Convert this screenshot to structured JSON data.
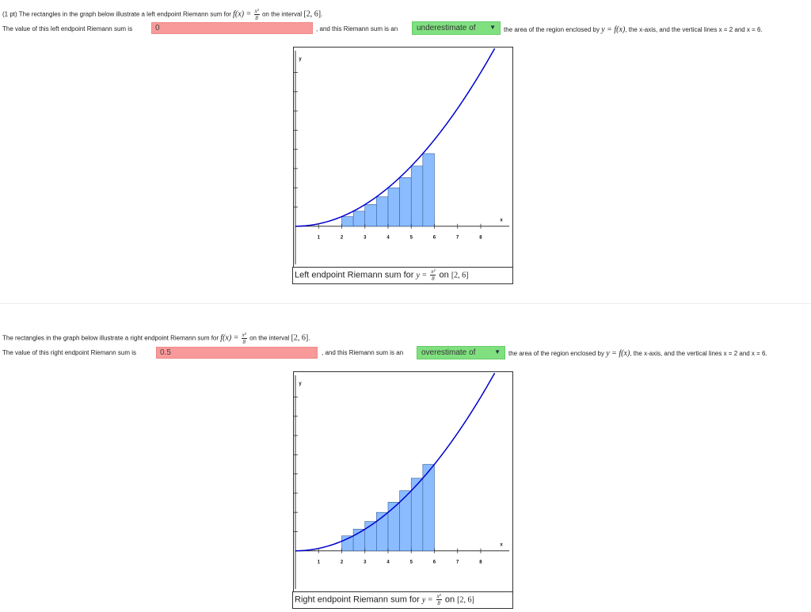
{
  "problem_a": {
    "points": "(1 pt)",
    "intro": "The rectangles in the graph below illustrate a left endpoint Riemann sum for",
    "func": "f(x) =",
    "frac_num": "x²",
    "frac_den": "8",
    "interval_label": "on the interval",
    "interval": "[2, 6]",
    "value_prefix": "The value of this left endpoint Riemann sum is",
    "value_input": "0",
    "middle_text": ", and this Riemann sum is an",
    "select_value": "underestimate of",
    "tail_text_1": "the area of the region enclosed by",
    "tail_math": "y = f(x)",
    "tail_text_2": ", the x-axis, and the vertical lines x = 2 and x = 6.",
    "caption_text": "Left endpoint Riemann sum for",
    "caption_math": "y =",
    "caption_on": "on",
    "caption_interval": "[2, 6]"
  },
  "problem_b": {
    "intro": "The rectangles in the graph below illustrate a right endpoint Riemann sum for",
    "func": "f(x) =",
    "frac_num": "x²",
    "frac_den": "8",
    "interval_label": "on the interval",
    "interval": "[2, 6]",
    "value_prefix": "The value of this right endpoint Riemann sum is",
    "value_input": "0.5",
    "middle_text": ", and this Riemann sum is an",
    "select_value": "overestimate of",
    "tail_text_1": "the area of the region enclosed by",
    "tail_math": "y = f(x)",
    "tail_text_2": ", the x-axis, and the vertical lines x = 2 and x = 6.",
    "caption_text": "Right endpoint Riemann sum for",
    "caption_math": "y =",
    "caption_on": "on",
    "caption_interval": "[2, 6]"
  },
  "chart_data": [
    {
      "type": "bar",
      "title": "",
      "xlabel": "x",
      "ylabel": "y",
      "xlim": [
        0,
        9.3
      ],
      "ylim": [
        -1,
        9.3
      ],
      "x_ticks": [
        1,
        2,
        3,
        4,
        5,
        6,
        7,
        8
      ],
      "y_ticks": [
        1,
        2,
        3,
        4,
        5,
        6,
        7,
        8
      ],
      "curve": "y = x^2/8",
      "curve_color": "#0000cc",
      "bar_color": "#8bbcff",
      "bar_width": 0.5,
      "bars_left_x": [
        2,
        2.5,
        3,
        3.5,
        4,
        4.5,
        5,
        5.5
      ],
      "values": [
        0.5,
        0.78,
        1.13,
        1.53,
        2.0,
        2.53,
        3.13,
        3.78
      ]
    },
    {
      "type": "bar",
      "title": "",
      "xlabel": "x",
      "ylabel": "y",
      "xlim": [
        0,
        9.3
      ],
      "ylim": [
        -1,
        9.3
      ],
      "x_ticks": [
        1,
        2,
        3,
        4,
        5,
        6,
        7,
        8
      ],
      "y_ticks": [
        1,
        2,
        3,
        4,
        5,
        6,
        7,
        8
      ],
      "curve": "y = x^2/8",
      "curve_color": "#0000cc",
      "bar_color": "#8bbcff",
      "bar_width": 0.5,
      "bars_left_x": [
        2,
        2.5,
        3,
        3.5,
        4,
        4.5,
        5,
        5.5
      ],
      "values": [
        0.78,
        1.13,
        1.53,
        2.0,
        2.53,
        3.13,
        3.78,
        4.5
      ]
    }
  ]
}
